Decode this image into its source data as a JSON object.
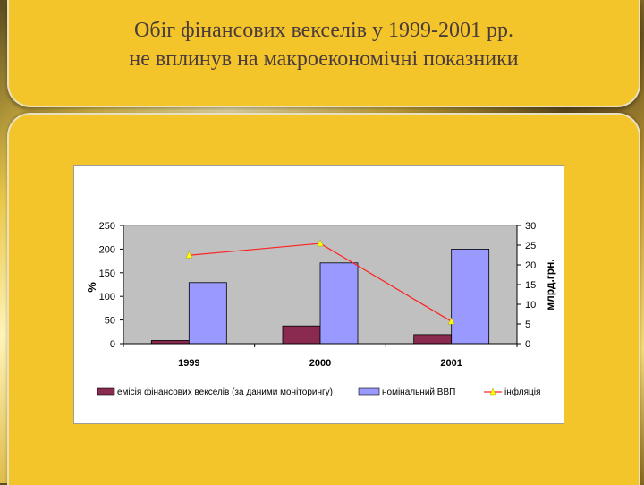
{
  "slide": {
    "title_line1": "Обіг фінансових векселів у 1999-2001 рр.",
    "title_line2": "не вплинув на макроекономічні показники"
  },
  "chart_data": {
    "type": "bar",
    "categories": [
      "1999",
      "2000",
      "2001"
    ],
    "series": [
      {
        "name": "емісія фінансових векселів (за даними моніторингу)",
        "kind": "bar",
        "axis": "right",
        "color": "#8b2a50",
        "values": [
          0.8,
          4.5,
          2.3
        ]
      },
      {
        "name": "номінальний ВВП",
        "kind": "bar",
        "axis": "right",
        "color": "#9999ff",
        "values": [
          15.5,
          20.5,
          24
        ]
      },
      {
        "name": "інфляція",
        "kind": "line",
        "axis": "left",
        "color": "#ff2020",
        "marker_color": "#ffff00",
        "values": [
          187,
          212,
          47
        ]
      }
    ],
    "ylabel_left": "%",
    "ylabel_right": "млрд.грн.",
    "ylim_left": [
      0,
      250
    ],
    "ylim_right": [
      0,
      30
    ],
    "yticks_left": [
      "0",
      "50",
      "100",
      "150",
      "200",
      "250"
    ],
    "yticks_right": [
      "0",
      "5",
      "10",
      "15",
      "20",
      "25",
      "30"
    ],
    "grid": false,
    "plot_background": "#c0c0c0",
    "legend_position": "bottom"
  }
}
